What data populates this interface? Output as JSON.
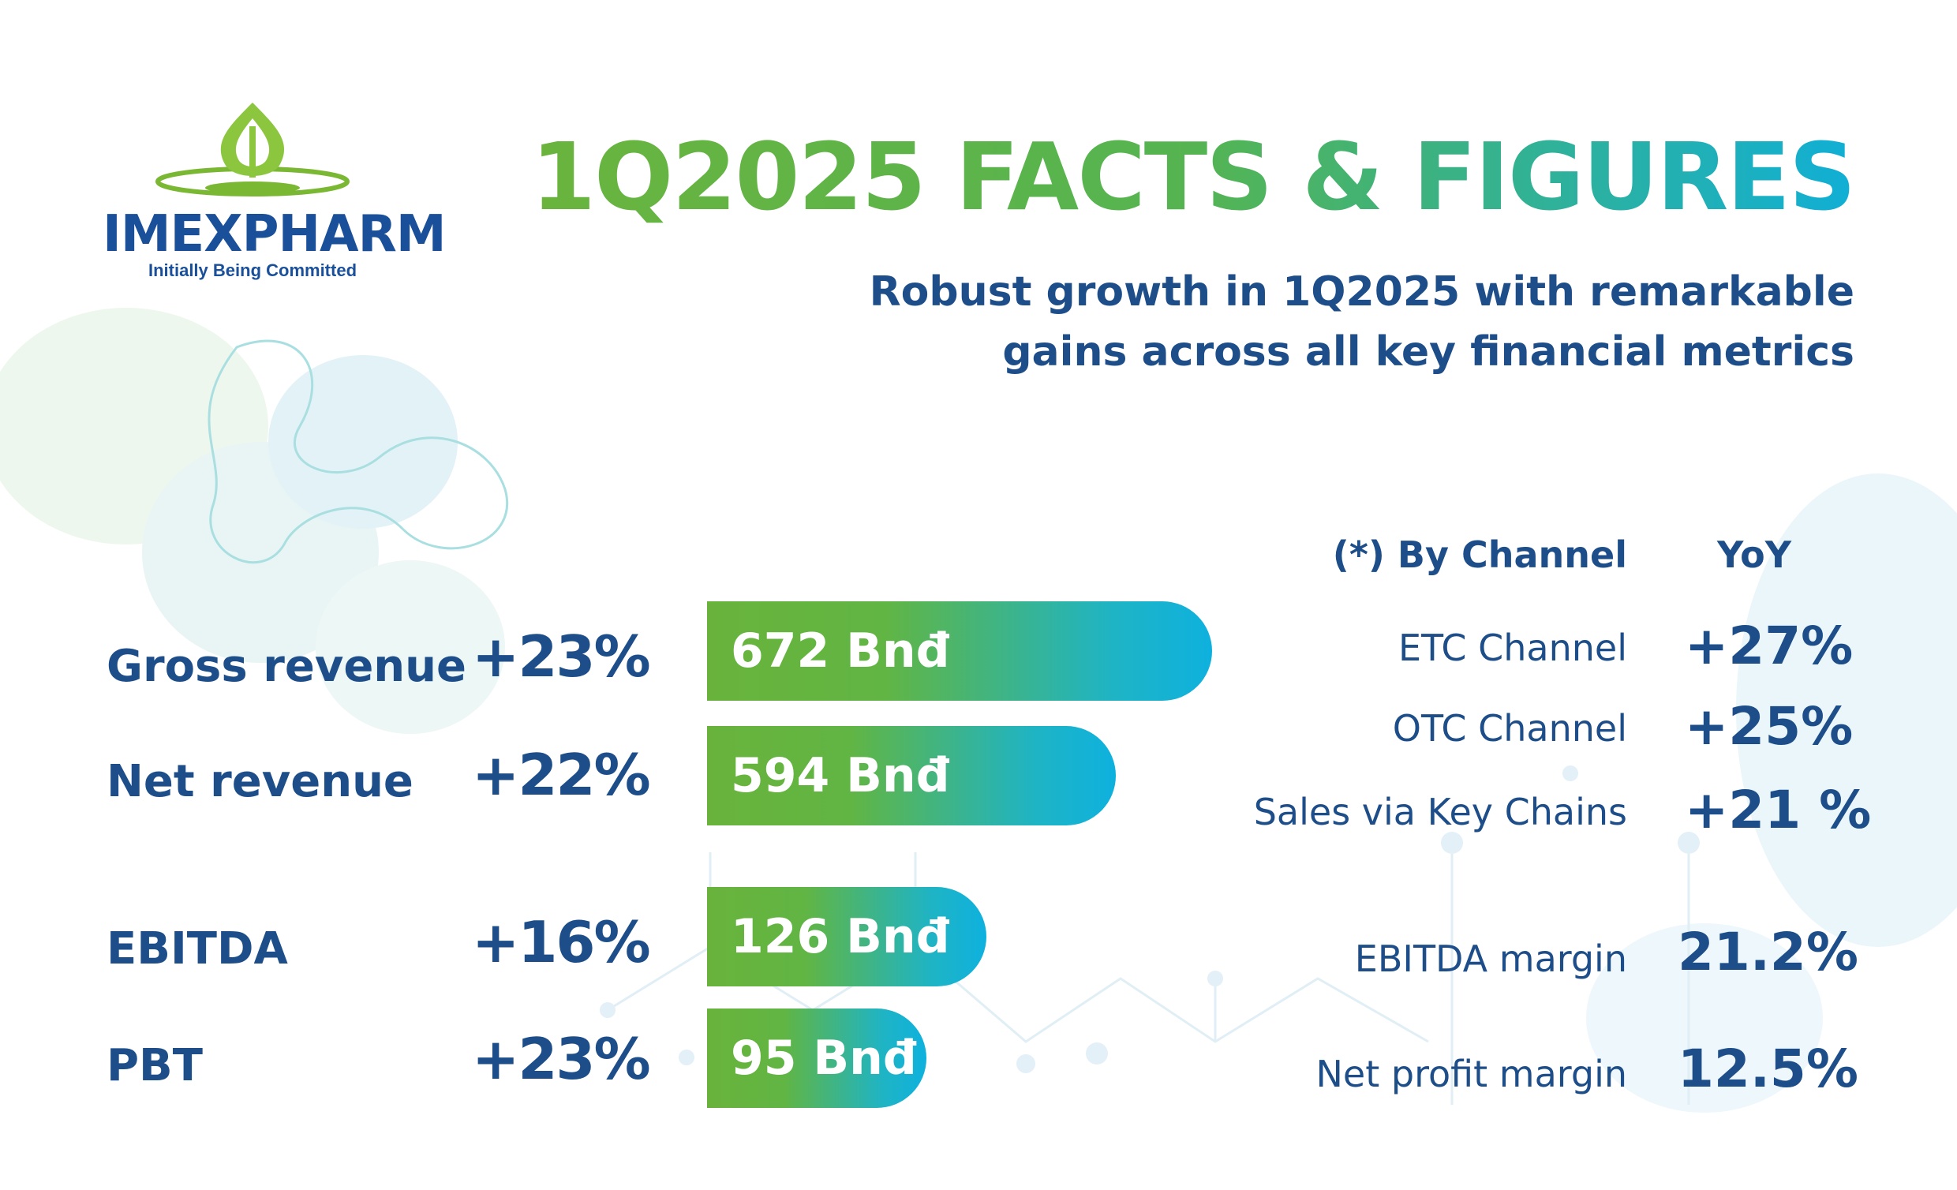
{
  "logo": {
    "brand": "IMEXPHARM",
    "tagline": "Initially Being Committed"
  },
  "title": "1Q2025 FACTS & FIGURES",
  "subtitle": "Robust growth in 1Q2025 with remarkable gains across all key financial metrics",
  "metrics": [
    {
      "label": "Gross revenue",
      "growth": "+23%",
      "value": "672 Bnđ",
      "amount": 672
    },
    {
      "label": "Net revenue",
      "growth": "+22%",
      "value": "594 Bnđ",
      "amount": 594
    },
    {
      "label": "EBITDA",
      "growth": "+16%",
      "value": "126 Bnđ",
      "amount": 126
    },
    {
      "label": "PBT",
      "growth": "+23%",
      "value": "95 Bnđ",
      "amount": 95
    }
  ],
  "channels": {
    "header_label": "(*) By Channel",
    "header_yoy": "YoY",
    "rows": [
      {
        "label": "ETC Channel",
        "value": "+27%"
      },
      {
        "label": "OTC Channel",
        "value": "+25%"
      },
      {
        "label": "Sales via Key Chains",
        "value": "+21 %"
      }
    ]
  },
  "margins": [
    {
      "label": "EBITDA margin",
      "value": "21.2%"
    },
    {
      "label": "Net profit margin",
      "value": "12.5%"
    }
  ],
  "colors": {
    "navy": "#1d4e89",
    "green": "#69b33c",
    "cyan": "#0eb1de"
  }
}
